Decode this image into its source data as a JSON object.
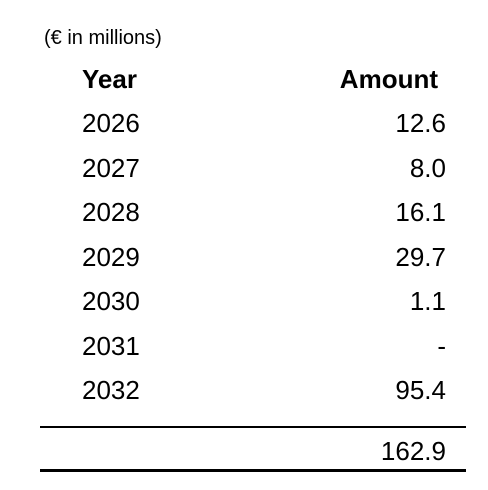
{
  "unit_note": "(€ in millions)",
  "headers": {
    "year": "Year",
    "amount": "Amount"
  },
  "rows": [
    {
      "year": "2026",
      "amount": "12.6"
    },
    {
      "year": "2027",
      "amount": "8.0"
    },
    {
      "year": "2028",
      "amount": "16.1"
    },
    {
      "year": "2029",
      "amount": "29.7"
    },
    {
      "year": "2030",
      "amount": "1.1"
    },
    {
      "year": "2031",
      "amount": "-"
    },
    {
      "year": "2032",
      "amount": "95.4"
    }
  ],
  "total": "162.9"
}
